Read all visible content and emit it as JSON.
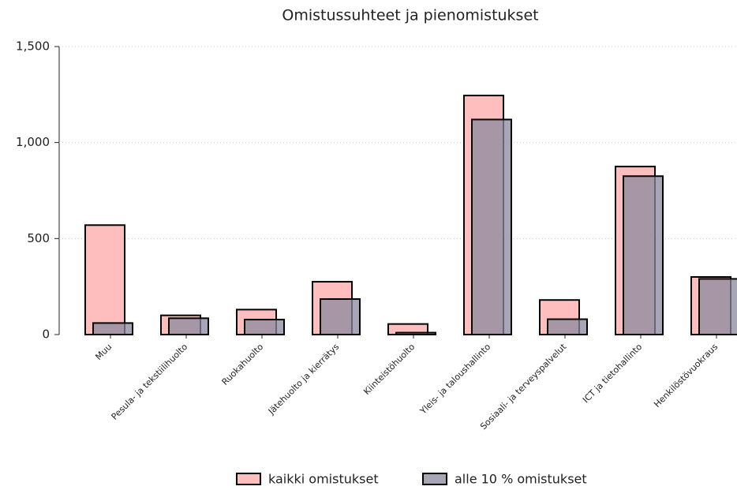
{
  "chart_data": {
    "type": "bar",
    "title": "Omistussuhteet ja pienomistukset",
    "categories": [
      "Muu",
      "Pesula- ja tekstiilihuolto",
      "Ruokahuolto",
      "Jätehuolto ja kierrätys",
      "Kiinteistöhuolto",
      "Yleis- ja taloushallinto",
      "Sosiaali- ja terveyspalvelut",
      "ICT ja tietohallinto",
      "Henkilöstövuokraus"
    ],
    "series": [
      {
        "name": "kaikki omistukset",
        "color": "#ffb3b3",
        "values": [
          570,
          100,
          130,
          275,
          55,
          1245,
          180,
          875,
          300
        ]
      },
      {
        "name": "alle 10 % omistukset",
        "color": "#8a889e",
        "values": [
          60,
          85,
          78,
          185,
          10,
          1120,
          80,
          825,
          290
        ]
      }
    ],
    "ylim": [
      0,
      1500
    ],
    "yticks": [
      0,
      500,
      {
        "value": 1000,
        "label": "1,000"
      },
      {
        "value": 1500,
        "label": "1,500"
      }
    ],
    "grid": true,
    "legend": "bottom"
  }
}
